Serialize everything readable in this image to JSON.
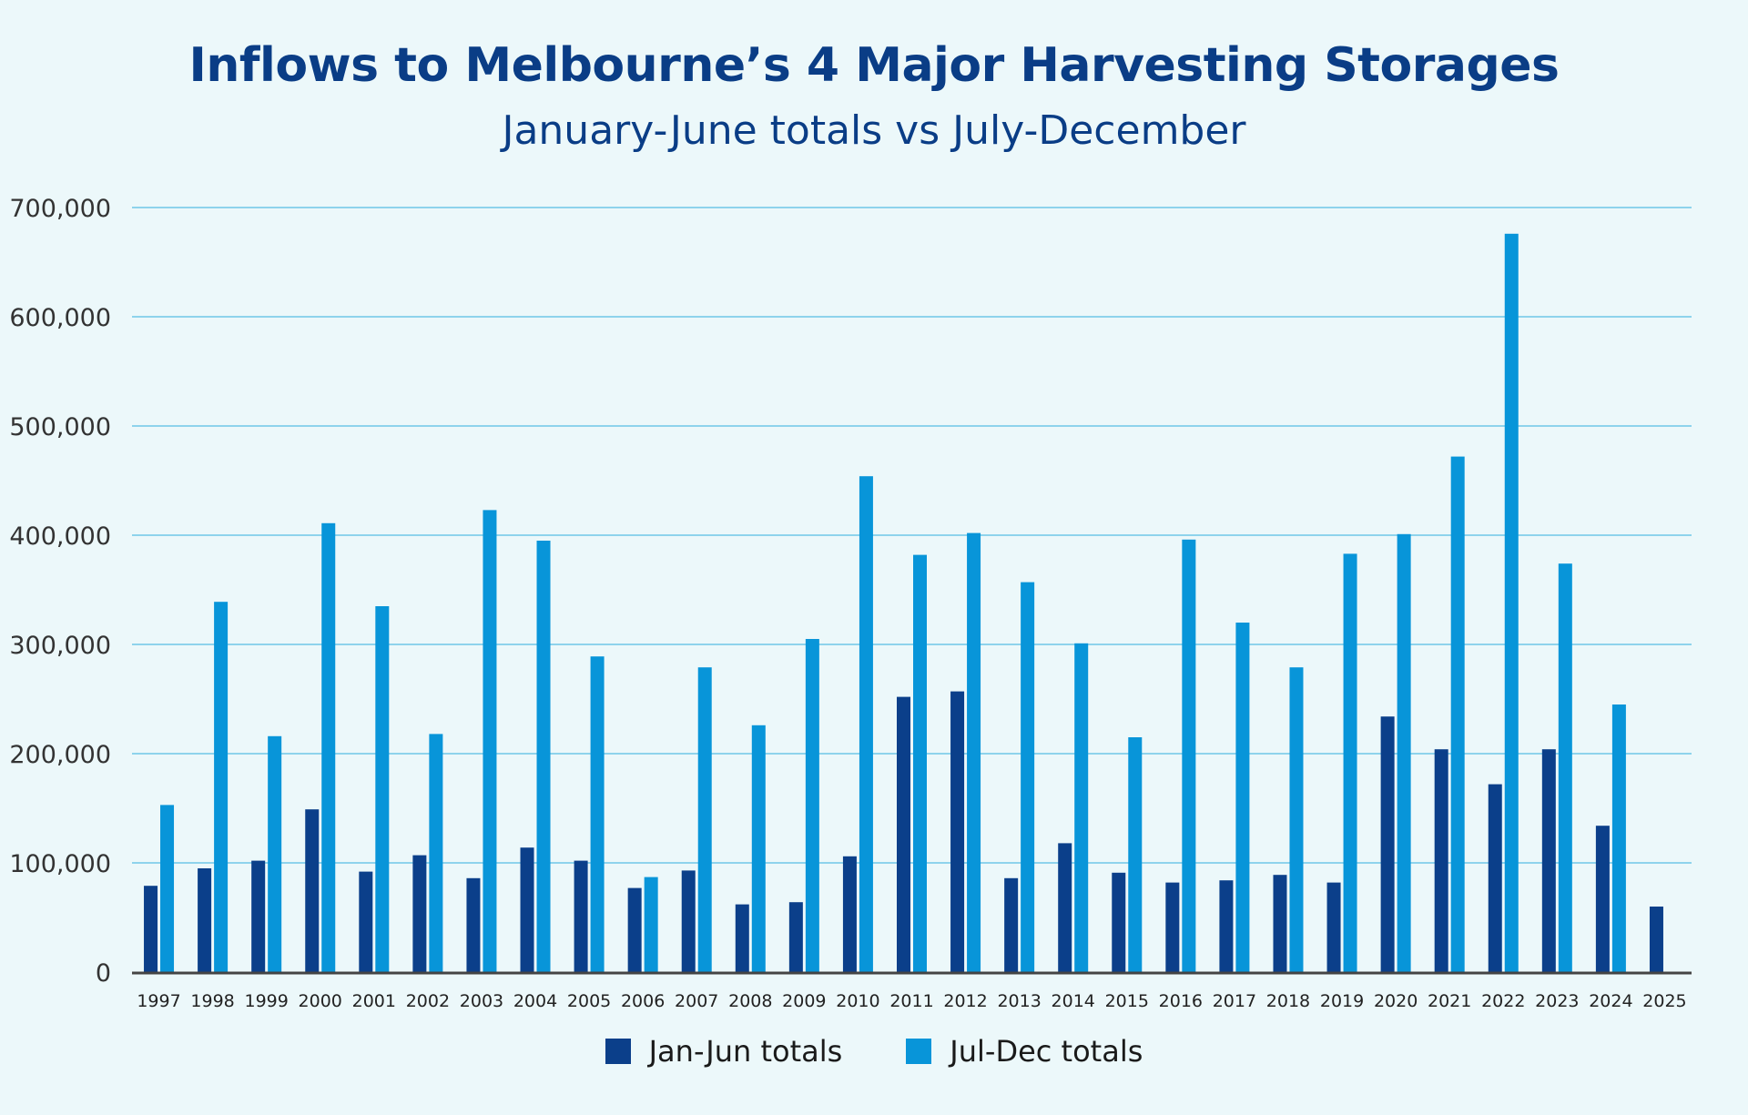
{
  "chart_data": {
    "type": "bar",
    "title": "Inflows to Melbourne’s 4 Major Harvesting Storages",
    "subtitle": "January-June totals vs July-December",
    "xlabel": "",
    "ylabel": "",
    "ylim": [
      0,
      700000
    ],
    "yticks": [
      0,
      100000,
      200000,
      300000,
      400000,
      500000,
      600000,
      700000
    ],
    "ytick_labels": [
      "0",
      "100,000",
      "200,000",
      "300,000",
      "400,000",
      "500,000",
      "600,000",
      "700,000"
    ],
    "grid": true,
    "legend_position": "bottom",
    "categories": [
      "1997",
      "1998",
      "1999",
      "2000",
      "2001",
      "2002",
      "2003",
      "2004",
      "2005",
      "2006",
      "2007",
      "2008",
      "2009",
      "2010",
      "2011",
      "2012",
      "2013",
      "2014",
      "2015",
      "2016",
      "2017",
      "2018",
      "2019",
      "2020",
      "2021",
      "2022",
      "2023",
      "2024",
      "2025"
    ],
    "series": [
      {
        "name": "Jan-Jun totals",
        "color": "#0b3f8a",
        "values": [
          79000,
          95000,
          102000,
          149000,
          92000,
          107000,
          86000,
          114000,
          102000,
          77000,
          93000,
          62000,
          64000,
          106000,
          252000,
          257000,
          86000,
          118000,
          91000,
          82000,
          84000,
          89000,
          82000,
          234000,
          204000,
          172000,
          204000,
          134000,
          60000
        ]
      },
      {
        "name": "Jul-Dec totals",
        "color": "#0895d9",
        "values": [
          153000,
          339000,
          216000,
          411000,
          335000,
          218000,
          423000,
          395000,
          289000,
          87000,
          279000,
          226000,
          305000,
          454000,
          382000,
          402000,
          357000,
          301000,
          215000,
          396000,
          320000,
          279000,
          383000,
          401000,
          472000,
          676000,
          374000,
          245000,
          null
        ]
      }
    ]
  }
}
